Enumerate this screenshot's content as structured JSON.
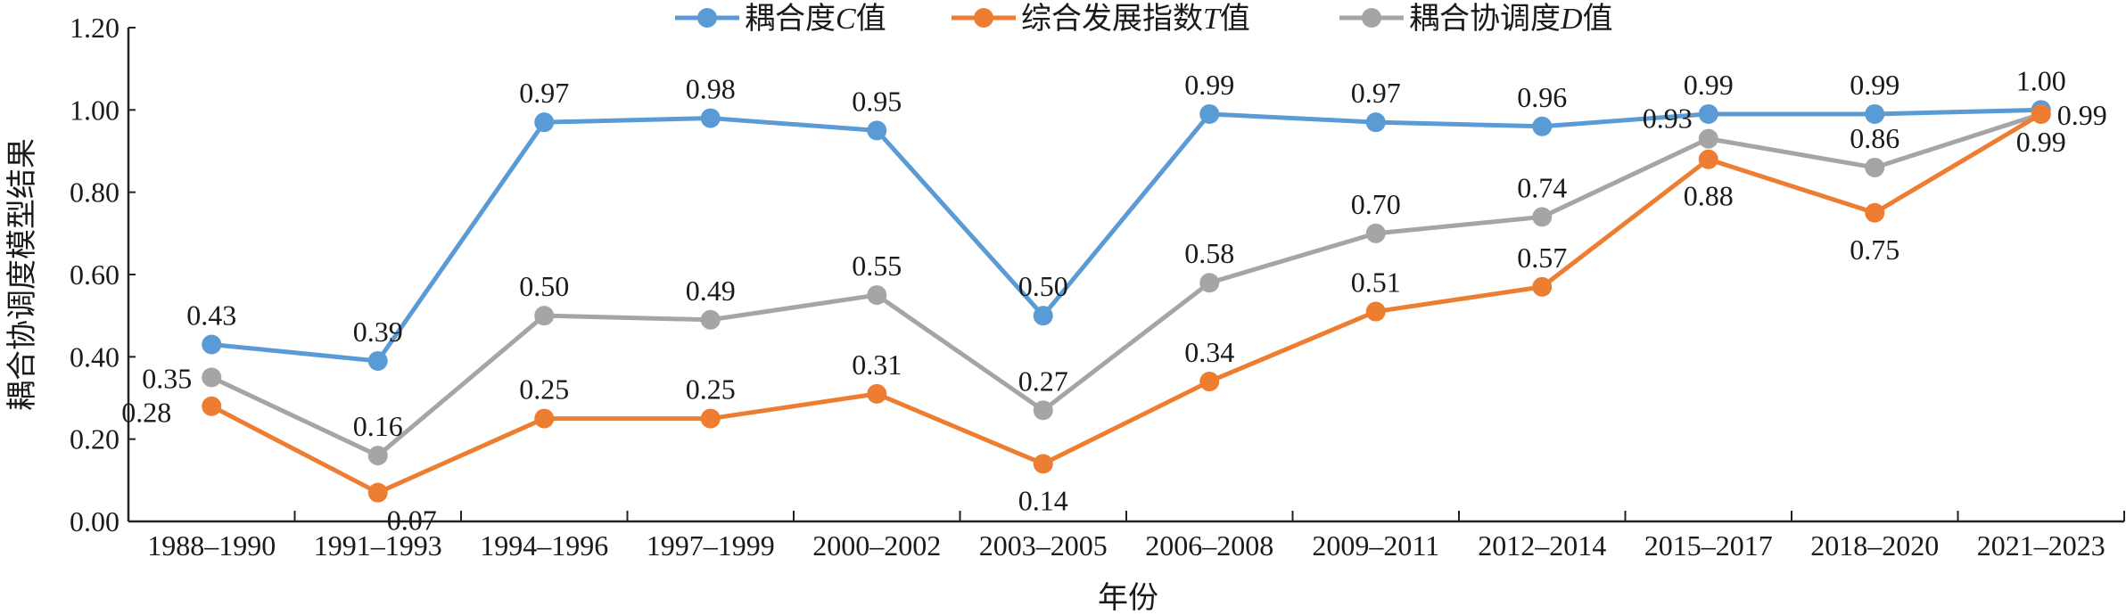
{
  "chart_data": {
    "type": "line",
    "title": "",
    "xlabel": "年份",
    "ylabel": "耦合协调度模型结果",
    "ylim": [
      0,
      1.2
    ],
    "yticks": [
      "0.00",
      "0.20",
      "0.40",
      "0.60",
      "0.80",
      "1.00",
      "1.20"
    ],
    "grid": false,
    "legend_position": "top-center",
    "categories": [
      "1988–1990",
      "1991–1993",
      "1994–1996",
      "1997–1999",
      "2000–2002",
      "2003–2005",
      "2006–2008",
      "2009–2011",
      "2012–2014",
      "2015–2017",
      "2018–2020",
      "2021–2023"
    ],
    "series": [
      {
        "name": "耦合度C值",
        "name_prefix": "耦合度",
        "name_var": "C",
        "name_suffix": "值",
        "color": "#5B9BD5",
        "values": [
          0.43,
          0.39,
          0.97,
          0.98,
          0.95,
          0.5,
          0.99,
          0.97,
          0.96,
          0.99,
          0.99,
          1.0
        ]
      },
      {
        "name": "综合发展指数T值",
        "name_prefix": "综合发展指数",
        "name_var": "T",
        "name_suffix": "值",
        "color": "#ED7D31",
        "values": [
          0.28,
          0.07,
          0.25,
          0.25,
          0.31,
          0.14,
          0.34,
          0.51,
          0.57,
          0.88,
          0.75,
          0.99
        ]
      },
      {
        "name": "耦合协调度D值",
        "name_prefix": "耦合协调度",
        "name_var": "D",
        "name_suffix": "值",
        "color": "#A5A5A5",
        "values": [
          0.35,
          0.16,
          0.5,
          0.49,
          0.55,
          0.27,
          0.58,
          0.7,
          0.74,
          0.93,
          0.86,
          0.99
        ]
      }
    ]
  }
}
